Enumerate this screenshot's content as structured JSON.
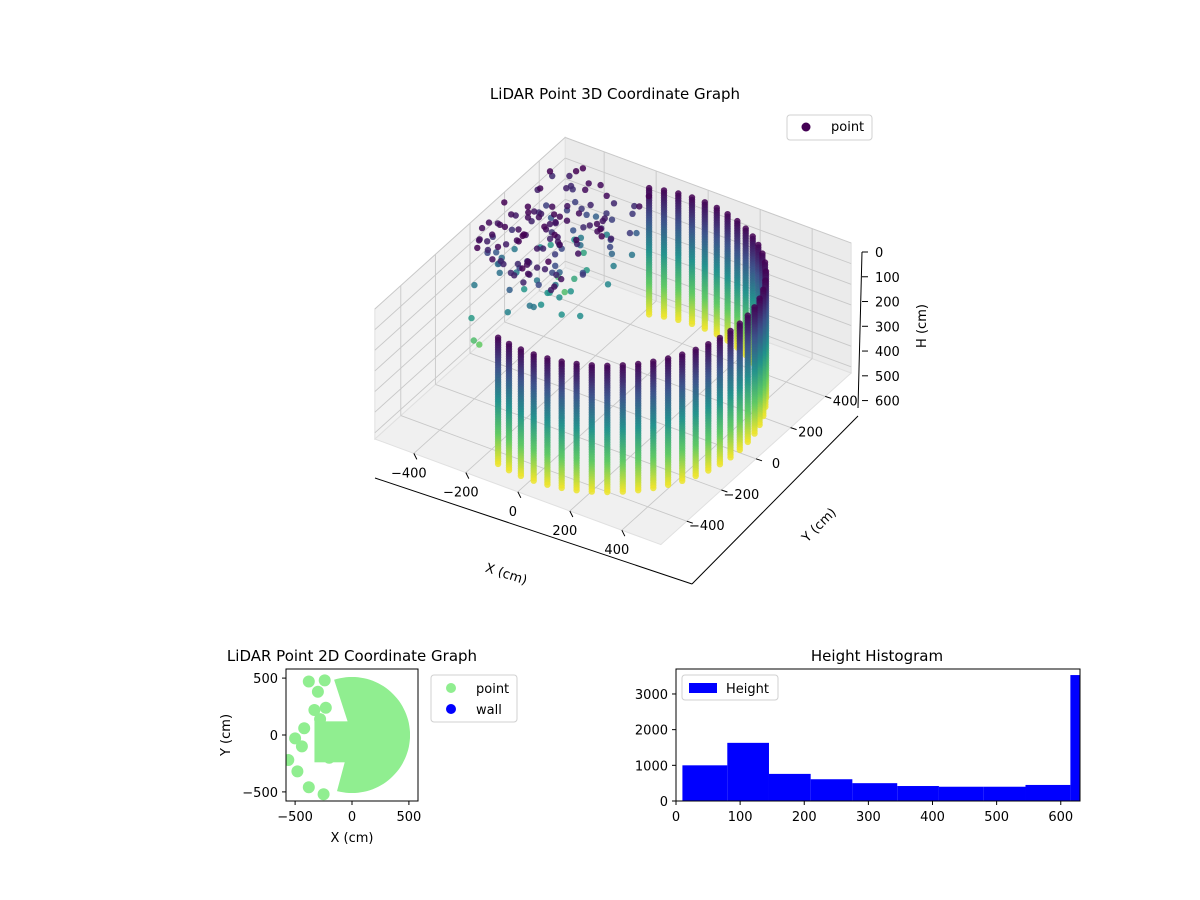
{
  "colors": {
    "viridis_dark": "#440154",
    "viridis_mid": "#21918c",
    "viridis_light": "#fde725",
    "point_2d": "#90ee90",
    "wall_2d": "#0000ff",
    "hist_bar": "#0000ff"
  },
  "chart_data": [
    {
      "type": "scatter",
      "subtype": "3d-scatter",
      "title": "LiDAR Point 3D Coordinate Graph",
      "xlabel": "X (cm)",
      "ylabel": "Y (cm)",
      "zlabel": "H (cm)",
      "x_ticks": [
        "−400",
        "−200",
        "0",
        "200",
        "400"
      ],
      "y_ticks": [
        "−400",
        "−200",
        "0",
        "200",
        "400"
      ],
      "z_ticks": [
        "0",
        "100",
        "200",
        "300",
        "400",
        "500",
        "600"
      ],
      "xlim": [
        -550,
        550
      ],
      "ylim": [
        -550,
        550
      ],
      "zlim": [
        0,
        630
      ],
      "z_axis_inverted": true,
      "colormap": "viridis",
      "legend": {
        "labels": [
          "point"
        ],
        "placement": "top-right"
      },
      "series": [
        {
          "name": "point",
          "shape": "half-cylinder wall of vertical scan lines",
          "radius": 490,
          "angle_range_deg": [
            -105,
            110
          ],
          "height_range": [
            0,
            620
          ],
          "scan_lines": 38
        }
      ]
    },
    {
      "type": "scatter",
      "title": "LiDAR Point 2D Coordinate Graph",
      "xlabel": "X (cm)",
      "ylabel": "Y (cm)",
      "x_ticks": [
        "−500",
        "0",
        "500"
      ],
      "y_ticks": [
        "500",
        "0",
        "−500"
      ],
      "xlim": [
        -580,
        580
      ],
      "ylim": [
        -580,
        580
      ],
      "legend": {
        "labels": [
          "point",
          "wall"
        ],
        "placement": "outside-right"
      },
      "series": [
        {
          "name": "point",
          "shape": "filled half-disc",
          "radius": 510,
          "angle_range_deg": [
            -105,
            110
          ]
        },
        {
          "name": "wall",
          "points": 0
        }
      ]
    },
    {
      "type": "bar",
      "subtype": "histogram",
      "title": "Height Histogram",
      "x_ticks": [
        "0",
        "100",
        "200",
        "300",
        "400",
        "500",
        "600"
      ],
      "y_ticks": [
        "0",
        "1000",
        "2000",
        "3000"
      ],
      "xlim": [
        0,
        630
      ],
      "ylim": [
        0,
        3700
      ],
      "legend": {
        "labels": [
          "Height"
        ],
        "placement": "top-left"
      },
      "series": [
        {
          "name": "Height",
          "bin_edges": [
            10,
            80,
            145,
            210,
            275,
            345,
            410,
            480,
            545,
            615,
            630
          ],
          "values": [
            1000,
            1630,
            760,
            610,
            500,
            420,
            400,
            400,
            450,
            3530
          ]
        }
      ]
    }
  ]
}
